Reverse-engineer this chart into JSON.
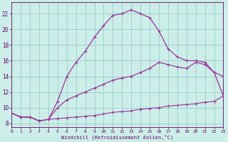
{
  "xlabel": "Windchill (Refroidissement éolien,°C)",
  "background_color": "#cceee8",
  "grid_color": "#99cccc",
  "line_color": "#993399",
  "tick_color": "#660066",
  "xlim": [
    0,
    23
  ],
  "ylim": [
    7.5,
    23.5
  ],
  "xticks": [
    0,
    1,
    2,
    3,
    4,
    5,
    6,
    7,
    8,
    9,
    10,
    11,
    12,
    13,
    14,
    15,
    16,
    17,
    18,
    19,
    20,
    21,
    22,
    23
  ],
  "yticks": [
    8,
    10,
    12,
    14,
    16,
    18,
    20,
    22
  ],
  "series": [
    {
      "x": [
        0,
        1,
        2,
        3,
        4,
        5,
        6,
        7,
        8,
        9,
        10,
        11,
        12,
        13,
        14,
        15,
        16,
        17,
        18,
        19,
        20,
        21,
        22,
        23
      ],
      "y": [
        9.3,
        8.8,
        8.8,
        8.3,
        8.5,
        8.6,
        8.7,
        8.8,
        8.9,
        9.0,
        9.2,
        9.4,
        9.5,
        9.6,
        9.8,
        9.9,
        10.0,
        10.2,
        10.3,
        10.4,
        10.5,
        10.7,
        10.8,
        11.5
      ],
      "linestyle": "-",
      "linewidth": 0.8,
      "markersize": 2.5,
      "marker": "+"
    },
    {
      "x": [
        0,
        1,
        2,
        3,
        4,
        5,
        6,
        7,
        8,
        9,
        10,
        11,
        12,
        13,
        14,
        15,
        16,
        17,
        18,
        19,
        20,
        21,
        22,
        23
      ],
      "y": [
        9.3,
        8.8,
        8.8,
        8.3,
        8.5,
        10.0,
        11.0,
        11.5,
        12.0,
        12.5,
        13.0,
        13.5,
        13.8,
        14.0,
        14.5,
        15.0,
        15.8,
        15.5,
        15.2,
        15.0,
        15.8,
        15.5,
        14.5,
        14.0
      ],
      "linestyle": "-",
      "linewidth": 0.9,
      "markersize": 2.5,
      "marker": "+"
    },
    {
      "x": [
        0,
        1,
        2,
        3,
        4,
        5,
        6,
        7,
        8,
        9,
        10,
        11,
        12,
        13,
        14,
        15,
        16,
        17,
        18,
        19,
        20,
        21,
        22,
        23
      ],
      "y": [
        9.3,
        8.8,
        8.8,
        8.3,
        8.5,
        10.8,
        14.0,
        15.8,
        17.2,
        19.0,
        20.5,
        21.8,
        22.0,
        22.5,
        22.0,
        21.5,
        19.8,
        17.5,
        16.5,
        16.0,
        16.0,
        15.8,
        14.5,
        11.5
      ],
      "linestyle": "-",
      "linewidth": 0.9,
      "markersize": 2.5,
      "marker": "+"
    }
  ]
}
